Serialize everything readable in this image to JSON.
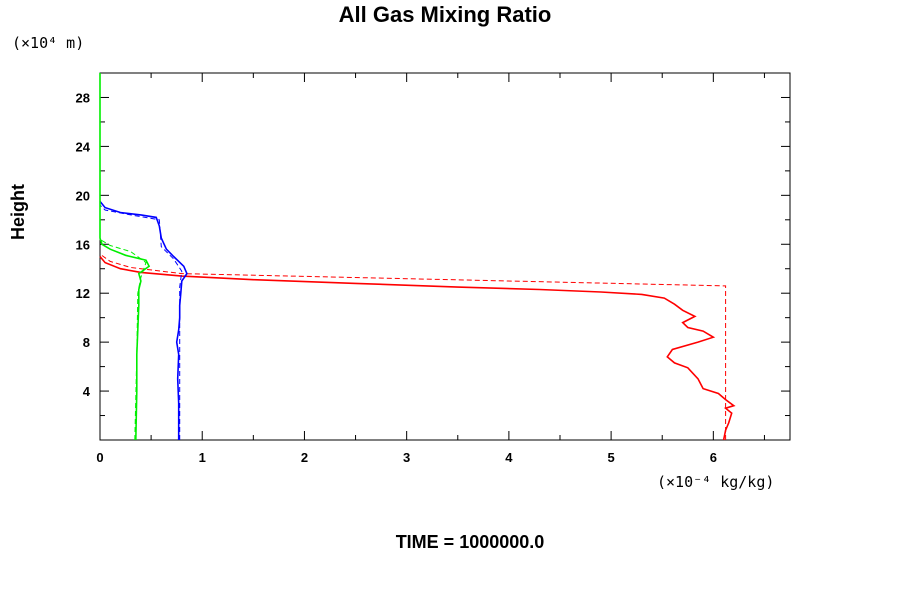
{
  "chart_data": {
    "type": "line",
    "title": "All Gas Mixing Ratio",
    "ylabel": "Height",
    "y_unit": "(×10⁴ m)",
    "x_unit": "(×10⁻⁴ kg/kg)",
    "footer": "TIME = 1000000.0",
    "xlim": [
      0,
      6.75
    ],
    "ylim": [
      0,
      30
    ],
    "xticks": [
      0,
      1,
      2,
      3,
      4,
      5,
      6
    ],
    "yticks": [
      4,
      8,
      12,
      16,
      20,
      24,
      28
    ],
    "series": [
      {
        "color": "#ff0000",
        "style": "solid",
        "points": [
          [
            6.1,
            0
          ],
          [
            6.12,
            0.8
          ],
          [
            6.15,
            1.4
          ],
          [
            6.18,
            2.2
          ],
          [
            6.12,
            2.6
          ],
          [
            6.2,
            2.8
          ],
          [
            6.12,
            3.3
          ],
          [
            6.05,
            3.8
          ],
          [
            5.9,
            4.2
          ],
          [
            5.85,
            5
          ],
          [
            5.75,
            5.9
          ],
          [
            5.62,
            6.3
          ],
          [
            5.55,
            6.8
          ],
          [
            5.6,
            7.4
          ],
          [
            5.85,
            8
          ],
          [
            6.0,
            8.4
          ],
          [
            5.9,
            8.9
          ],
          [
            5.75,
            9.2
          ],
          [
            5.7,
            9.6
          ],
          [
            5.82,
            10.1
          ],
          [
            5.7,
            10.6
          ],
          [
            5.62,
            11.1
          ],
          [
            5.52,
            11.6
          ],
          [
            5.3,
            11.9
          ],
          [
            4.9,
            12.1
          ],
          [
            4.3,
            12.3
          ],
          [
            3.5,
            12.5
          ],
          [
            2.5,
            12.8
          ],
          [
            1.5,
            13.1
          ],
          [
            0.8,
            13.4
          ],
          [
            0.4,
            13.7
          ],
          [
            0.2,
            14
          ],
          [
            0.05,
            14.5
          ],
          [
            0,
            15
          ]
        ]
      },
      {
        "color": "#ff0000",
        "style": "dashed",
        "points": [
          [
            6.12,
            0
          ],
          [
            6.12,
            12.6
          ],
          [
            0.8,
            13.6
          ],
          [
            0.3,
            14.1
          ],
          [
            0.1,
            14.6
          ],
          [
            0,
            15.2
          ]
        ]
      },
      {
        "color": "#0000ff",
        "style": "solid",
        "points": [
          [
            0.77,
            0
          ],
          [
            0.77,
            3
          ],
          [
            0.76,
            5
          ],
          [
            0.77,
            7
          ],
          [
            0.75,
            8
          ],
          [
            0.77,
            9
          ],
          [
            0.78,
            10
          ],
          [
            0.78,
            11
          ],
          [
            0.79,
            12
          ],
          [
            0.8,
            13
          ],
          [
            0.85,
            13.6
          ],
          [
            0.82,
            14.2
          ],
          [
            0.72,
            15
          ],
          [
            0.65,
            15.6
          ],
          [
            0.6,
            16.5
          ],
          [
            0.58,
            17.5
          ],
          [
            0.55,
            18.2
          ],
          [
            0.4,
            18.4
          ],
          [
            0.2,
            18.6
          ],
          [
            0.05,
            19
          ],
          [
            0,
            19.5
          ]
        ]
      },
      {
        "color": "#0000ff",
        "style": "dashed",
        "points": [
          [
            0.78,
            0
          ],
          [
            0.78,
            12.5
          ],
          [
            0.8,
            13.8
          ],
          [
            0.72,
            14.8
          ],
          [
            0.6,
            15.8
          ],
          [
            0.58,
            18
          ],
          [
            0.3,
            18.4
          ],
          [
            0.05,
            18.8
          ],
          [
            0,
            19.2
          ]
        ]
      },
      {
        "color": "#00ee00",
        "style": "solid",
        "points": [
          [
            0.35,
            0
          ],
          [
            0.36,
            4
          ],
          [
            0.36,
            7
          ],
          [
            0.37,
            9
          ],
          [
            0.38,
            11
          ],
          [
            0.38,
            12.3
          ],
          [
            0.4,
            13
          ],
          [
            0.38,
            13.6
          ],
          [
            0.48,
            14.2
          ],
          [
            0.45,
            14.7
          ],
          [
            0.25,
            15.1
          ],
          [
            0.1,
            15.6
          ],
          [
            0.02,
            16
          ],
          [
            0,
            16.5
          ],
          [
            0,
            30
          ]
        ]
      },
      {
        "color": "#00ee00",
        "style": "dashed",
        "points": [
          [
            0.34,
            0
          ],
          [
            0.36,
            7
          ],
          [
            0.37,
            12
          ],
          [
            0.4,
            13.3
          ],
          [
            0.45,
            14.5
          ],
          [
            0.3,
            15.4
          ],
          [
            0.1,
            15.9
          ],
          [
            0,
            16.4
          ]
        ]
      }
    ]
  }
}
